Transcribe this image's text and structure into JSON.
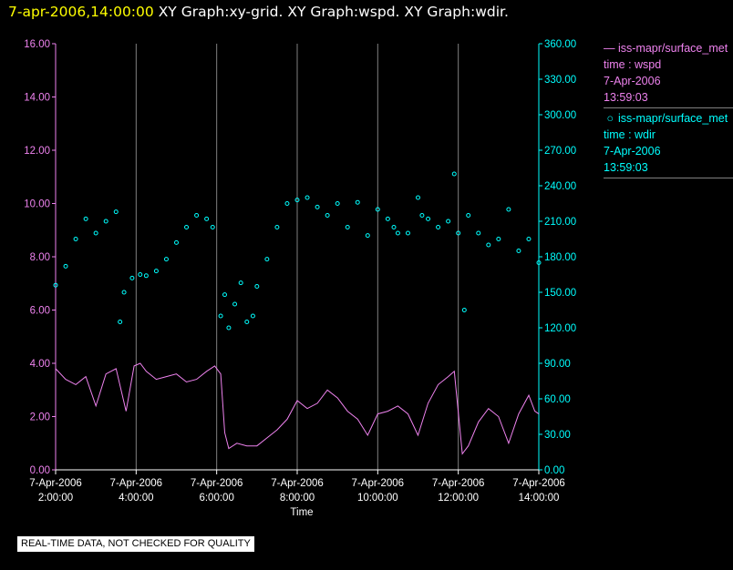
{
  "header": {
    "timestamp": "7-apr-2006,14:00:00",
    "graphs": "  XY Graph:xy-grid.  XY Graph:wspd.  XY Graph:wdir."
  },
  "colors": {
    "background": "#000000",
    "wspd": "#ee82ee",
    "wdir": "#00ffff",
    "grid": "#808080",
    "timestamp": "#ffff00"
  },
  "legend": [
    {
      "symbol": "line",
      "lines": [
        "iss-mapr/surface_met",
        "time : wspd",
        "7-Apr-2006",
        "13:59:03"
      ]
    },
    {
      "symbol": "circle",
      "lines": [
        "iss-mapr/surface_met",
        "time : wdir",
        "7-Apr-2006",
        "13:59:03"
      ]
    }
  ],
  "disclaimer": "REAL-TIME DATA, NOT CHECKED FOR QUALITY",
  "chart_data": {
    "type": "line",
    "xlabel": "Time",
    "x_ticks": [
      {
        "date": "7-Apr-2006",
        "time": "2:00:00",
        "h": 2
      },
      {
        "date": "7-Apr-2006",
        "time": "4:00:00",
        "h": 4
      },
      {
        "date": "7-Apr-2006",
        "time": "6:00:00",
        "h": 6
      },
      {
        "date": "7-Apr-2006",
        "time": "8:00:00",
        "h": 8
      },
      {
        "date": "7-Apr-2006",
        "time": "10:00:00",
        "h": 10
      },
      {
        "date": "7-Apr-2006",
        "time": "12:00:00",
        "h": 12
      },
      {
        "date": "7-Apr-2006",
        "time": "14:00:00",
        "h": 14
      }
    ],
    "xlim_hours": [
      2,
      14
    ],
    "left_axis": {
      "range": [
        0,
        16
      ],
      "ticks": [
        "0.00",
        "2.00",
        "4.00",
        "6.00",
        "8.00",
        "10.00",
        "12.00",
        "14.00",
        "16.00"
      ]
    },
    "right_axis": {
      "range": [
        0,
        360
      ],
      "ticks": [
        "0.00",
        "30.00",
        "60.00",
        "90.00",
        "120.00",
        "150.00",
        "180.00",
        "210.00",
        "240.00",
        "270.00",
        "300.00",
        "330.00",
        "360.00"
      ]
    },
    "grid": "vertical",
    "series": [
      {
        "name": "wspd",
        "style": "line",
        "axis": "left",
        "color": "#ee82ee",
        "x_hours": [
          2,
          2.25,
          2.5,
          2.75,
          3,
          3.25,
          3.5,
          3.75,
          3.95,
          4.1,
          4.25,
          4.5,
          4.75,
          5,
          5.25,
          5.5,
          5.75,
          5.95,
          6.1,
          6.2,
          6.3,
          6.5,
          6.75,
          7,
          7.25,
          7.5,
          7.75,
          8,
          8.25,
          8.5,
          8.75,
          9,
          9.25,
          9.5,
          9.75,
          10,
          10.25,
          10.5,
          10.75,
          11,
          11.25,
          11.5,
          11.75,
          11.9,
          12.1,
          12.25,
          12.5,
          12.75,
          13,
          13.25,
          13.5,
          13.75,
          13.9,
          14
        ],
        "values": [
          3.8,
          3.4,
          3.2,
          3.5,
          2.4,
          3.6,
          3.8,
          2.2,
          3.9,
          4.0,
          3.7,
          3.4,
          3.5,
          3.6,
          3.3,
          3.4,
          3.7,
          3.9,
          3.6,
          1.4,
          0.8,
          1.0,
          0.9,
          0.9,
          1.2,
          1.5,
          1.9,
          2.6,
          2.3,
          2.5,
          3.0,
          2.7,
          2.2,
          1.9,
          1.3,
          2.1,
          2.2,
          2.4,
          2.1,
          1.3,
          2.5,
          3.2,
          3.5,
          3.7,
          0.6,
          0.9,
          1.8,
          2.3,
          2.0,
          1.0,
          2.1,
          2.8,
          2.2,
          2.1
        ]
      },
      {
        "name": "wdir",
        "style": "points",
        "axis": "right",
        "color": "#00ffff",
        "x_hours": [
          2,
          2.25,
          2.5,
          2.75,
          3,
          3.25,
          3.5,
          3.6,
          3.7,
          3.9,
          4.1,
          4.25,
          4.5,
          4.75,
          5,
          5.25,
          5.5,
          5.75,
          5.9,
          6.1,
          6.2,
          6.3,
          6.45,
          6.6,
          6.75,
          6.9,
          7.0,
          7.25,
          7.5,
          7.75,
          8,
          8.25,
          8.5,
          8.75,
          9,
          9.25,
          9.5,
          9.75,
          10,
          10.25,
          10.4,
          10.5,
          10.75,
          11,
          11.1,
          11.25,
          11.5,
          11.75,
          11.9,
          12.0,
          12.15,
          12.25,
          12.5,
          12.75,
          13,
          13.25,
          13.5,
          13.75,
          14
        ],
        "values": [
          156,
          172,
          195,
          212,
          200,
          210,
          218,
          125,
          150,
          162,
          165,
          164,
          168,
          178,
          192,
          205,
          215,
          212,
          205,
          130,
          148,
          120,
          140,
          158,
          125,
          130,
          155,
          178,
          205,
          225,
          228,
          230,
          222,
          215,
          225,
          205,
          226,
          198,
          220,
          212,
          205,
          200,
          200,
          230,
          215,
          212,
          205,
          210,
          250,
          200,
          135,
          215,
          200,
          190,
          195,
          220,
          185,
          195,
          175
        ]
      }
    ]
  }
}
